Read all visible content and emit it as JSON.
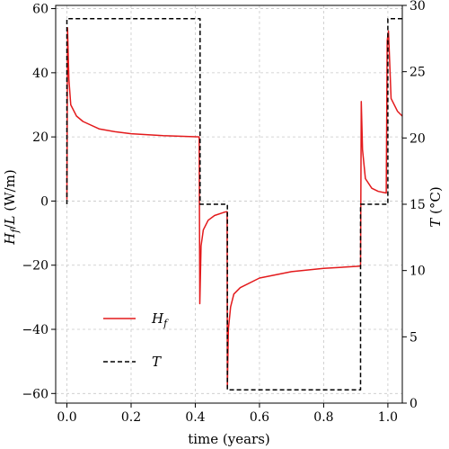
{
  "chart_data": {
    "type": "line",
    "xlabel": "time (years)",
    "ylabel_left": "H_f/L (W/m)",
    "ylabel_right": "T (°C)",
    "xlim": [
      -0.035,
      1.045
    ],
    "ylim_left": [
      -63,
      61
    ],
    "ylim_right": [
      0,
      30
    ],
    "grid": true,
    "legend_placement": "lower-left",
    "x_ticks": [
      "0.0",
      "0.2",
      "0.4",
      "0.6",
      "0.8",
      "1.0"
    ],
    "x_tick_values": [
      0.0,
      0.2,
      0.4,
      0.6,
      0.8,
      1.0
    ],
    "y_left_ticks": [
      "−60",
      "−40",
      "−20",
      "0",
      "20",
      "40",
      "60"
    ],
    "y_left_tick_values": [
      -60,
      -40,
      -20,
      0,
      20,
      40,
      60
    ],
    "y_right_ticks": [
      "0",
      "5",
      "10",
      "15",
      "20",
      "25",
      "30"
    ],
    "y_right_tick_values": [
      0,
      5,
      10,
      15,
      20,
      25,
      30
    ],
    "series": [
      {
        "name": "H_f",
        "axis": "left",
        "color": "#e31a1c",
        "style": "solid",
        "points": [
          [
            0.0,
            0.5
          ],
          [
            0.002,
            54
          ],
          [
            0.006,
            38
          ],
          [
            0.012,
            30
          ],
          [
            0.03,
            26.5
          ],
          [
            0.05,
            24.8
          ],
          [
            0.1,
            22.5
          ],
          [
            0.15,
            21.6
          ],
          [
            0.2,
            21.0
          ],
          [
            0.3,
            20.4
          ],
          [
            0.412,
            20.0
          ],
          [
            0.414,
            -32
          ],
          [
            0.418,
            -14
          ],
          [
            0.425,
            -9
          ],
          [
            0.44,
            -6
          ],
          [
            0.46,
            -4.5
          ],
          [
            0.49,
            -3.5
          ],
          [
            0.499,
            -3.3
          ],
          [
            0.5,
            -58
          ],
          [
            0.503,
            -40
          ],
          [
            0.51,
            -33
          ],
          [
            0.52,
            -29
          ],
          [
            0.54,
            -27
          ],
          [
            0.6,
            -24
          ],
          [
            0.7,
            -22
          ],
          [
            0.8,
            -21
          ],
          [
            0.915,
            -20.3
          ],
          [
            0.917,
            31
          ],
          [
            0.921,
            16
          ],
          [
            0.93,
            7
          ],
          [
            0.95,
            4
          ],
          [
            0.97,
            3
          ],
          [
            0.995,
            2.5
          ],
          [
            0.998,
            50
          ],
          [
            1.002,
            53
          ],
          [
            1.01,
            32
          ],
          [
            1.03,
            28
          ],
          [
            1.045,
            26.5
          ]
        ]
      },
      {
        "name": "T",
        "axis": "right",
        "color": "#000000",
        "style": "dashed",
        "points": [
          [
            0.0,
            15
          ],
          [
            0.0,
            29
          ],
          [
            0.415,
            29
          ],
          [
            0.415,
            15
          ],
          [
            0.5,
            15
          ],
          [
            0.5,
            1
          ],
          [
            0.915,
            1
          ],
          [
            0.915,
            15
          ],
          [
            1.0,
            15
          ],
          [
            1.0,
            29
          ],
          [
            1.045,
            29
          ]
        ]
      }
    ]
  }
}
